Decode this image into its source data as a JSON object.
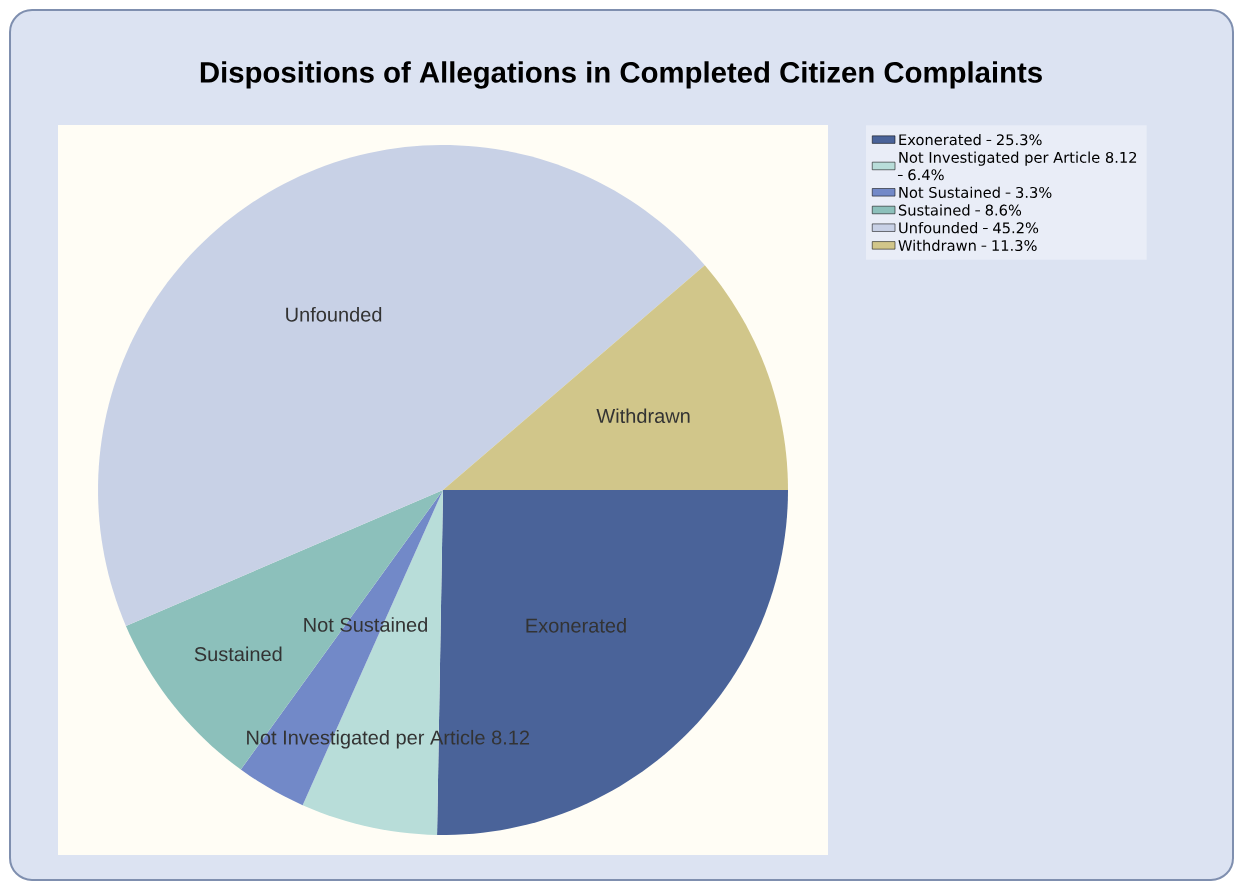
{
  "chart_data": {
    "type": "pie",
    "title": "Dispositions of Allegations in Completed Citizen Complaints",
    "categories": [
      "Exonerated",
      "Not Investigated per Article 8.12",
      "Not Sustained",
      "Sustained",
      "Unfounded",
      "Withdrawn"
    ],
    "values": [
      25.3,
      6.4,
      3.3,
      8.6,
      45.2,
      11.3
    ],
    "value_labels": [
      "25.3%",
      "6.4%",
      "3.3%",
      "8.6%",
      "45.2%",
      "11.3%"
    ],
    "colors": [
      "#4a6399",
      "#b8ddd9",
      "#7289c8",
      "#8cc0bb",
      "#c8d1e6",
      "#d1c68a"
    ],
    "legend": "top right"
  }
}
